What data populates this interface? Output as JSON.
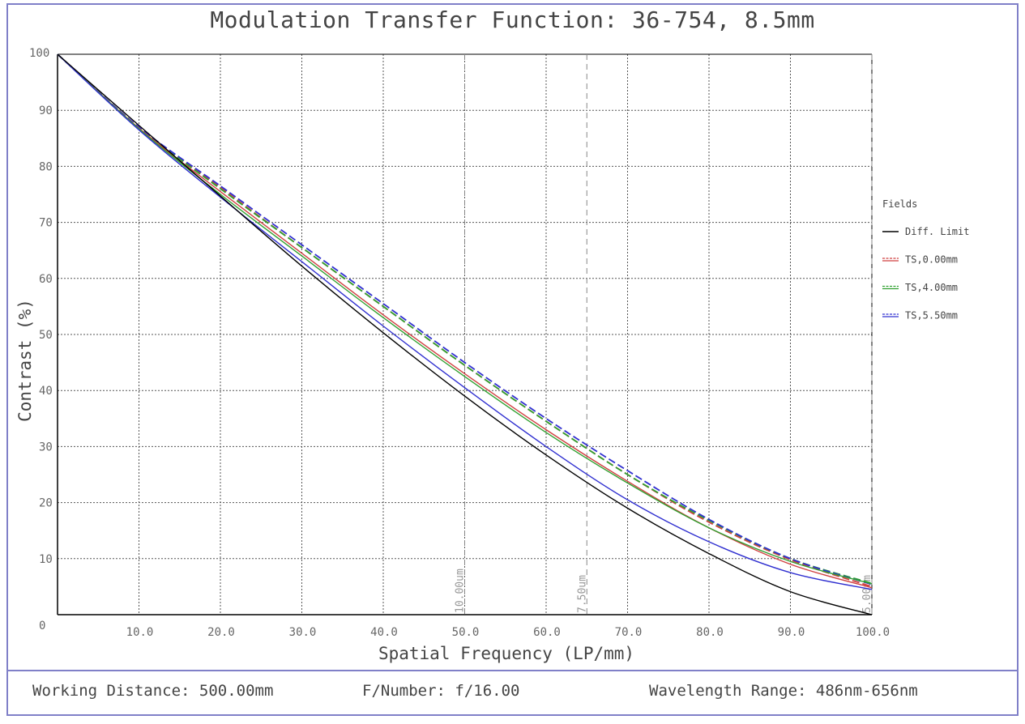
{
  "footer": {
    "working_distance": "Working Distance: 500.00mm",
    "f_number": "F/Number: f/16.00",
    "wavelength": "Wavelength Range: 486nm-656nm"
  },
  "colors": {
    "frame": "#8080c8",
    "diff_limit": "#000000",
    "ts_0": "#d04040",
    "ts_4": "#30a030",
    "ts_5_5": "#3030d0"
  },
  "chart_data": {
    "type": "line",
    "title": "Modulation Transfer Function: 36-754, 8.5mm",
    "xlabel": "Spatial Frequency (LP/mm)",
    "ylabel": "Contrast (%)",
    "xlim": [
      0,
      100
    ],
    "ylim": [
      0,
      100
    ],
    "grid": true,
    "x_ticks": [
      "10.0",
      "20.0",
      "30.0",
      "40.0",
      "50.0",
      "60.0",
      "70.0",
      "80.0",
      "90.0",
      "100.0"
    ],
    "y_ticks": [
      "0",
      "10",
      "20",
      "30",
      "40",
      "50",
      "60",
      "70",
      "80",
      "90",
      "100"
    ],
    "legend": {
      "title": "Fields",
      "position": "right",
      "entries": [
        "Diff. Limit",
        "TS,0.00mm",
        "TS,4.00mm",
        "TS,5.50mm"
      ]
    },
    "vlines": [
      {
        "x": 50,
        "label": "10.00um"
      },
      {
        "x": 65,
        "label": "7.50um"
      },
      {
        "x": 100,
        "label": "5.00um"
      }
    ],
    "x": [
      0,
      10,
      20,
      30,
      40,
      50,
      60,
      70,
      80,
      90,
      100
    ],
    "series": [
      {
        "name": "Diff. Limit",
        "color_key": "diff_limit",
        "dash": "solid",
        "values": [
          100,
          87.3,
          74.7,
          62.2,
          50.3,
          39.0,
          28.5,
          19.0,
          10.9,
          4.1,
          0
        ]
      },
      {
        "name": "TS,0.00mm",
        "color_key": "ts_0",
        "dash": "solid",
        "values": [
          100,
          86.8,
          75.5,
          64.5,
          53.5,
          43.0,
          33.0,
          23.8,
          15.5,
          9.0,
          4.8
        ]
      },
      {
        "name": "TS,0.00mm",
        "color_key": "ts_0",
        "dash": "dashed",
        "values": [
          100,
          86.9,
          76.2,
          65.5,
          55.0,
          44.5,
          34.5,
          25.0,
          16.5,
          9.8,
          5.0
        ]
      },
      {
        "name": "TS,4.00mm",
        "color_key": "ts_4",
        "dash": "solid",
        "values": [
          100,
          86.7,
          75.0,
          64.0,
          53.0,
          42.5,
          32.5,
          23.5,
          15.5,
          9.5,
          5.5
        ]
      },
      {
        "name": "TS,4.00mm",
        "color_key": "ts_4",
        "dash": "dashed",
        "values": [
          100,
          86.9,
          76.0,
          65.5,
          55.0,
          44.5,
          34.5,
          25.0,
          16.8,
          10.0,
          5.6
        ]
      },
      {
        "name": "TS,5.50mm",
        "color_key": "ts_5_5",
        "dash": "solid",
        "values": [
          100,
          86.5,
          74.5,
          63.0,
          51.5,
          40.5,
          30.0,
          20.5,
          13.0,
          7.5,
          4.5
        ]
      },
      {
        "name": "TS,5.50mm",
        "color_key": "ts_5_5",
        "dash": "dashed",
        "values": [
          100,
          87.0,
          76.5,
          66.0,
          55.5,
          45.0,
          35.0,
          25.7,
          17.0,
          10.0,
          5.4
        ]
      }
    ]
  }
}
